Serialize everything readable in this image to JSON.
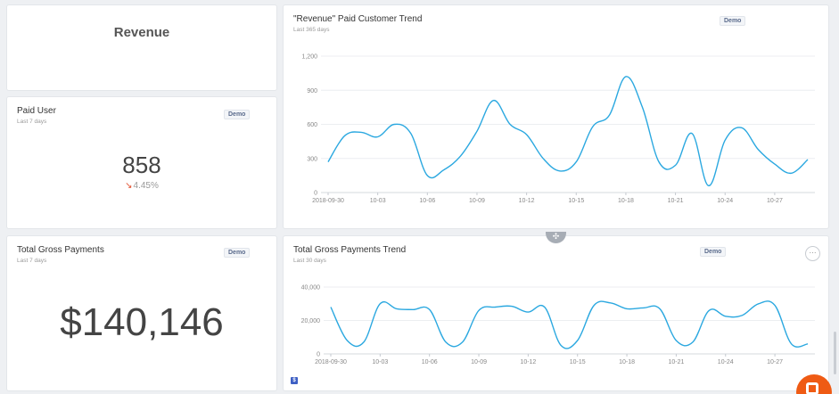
{
  "revenue_card": {
    "title": "Revenue"
  },
  "paid_user": {
    "title": "Paid User",
    "subtitle": "Last 7 days",
    "badge": "Demo",
    "value": "858",
    "delta_arrow": "↘",
    "delta": "4.45%"
  },
  "gross_payments": {
    "title": "Total Gross Payments",
    "subtitle": "Last 7 days",
    "badge": "Demo",
    "value": "$140,146"
  },
  "trend_chart": {
    "title": "\"Revenue\" Paid Customer Trend",
    "subtitle": "Last 365 days",
    "badge": "Demo"
  },
  "payments_trend": {
    "title": "Total Gross Payments Trend",
    "subtitle": "Last 30 days",
    "badge": "Demo",
    "more_label": "···"
  },
  "misc": {
    "grip_label": "✣",
    "footer_icon_label": "$"
  },
  "colors": {
    "line": "#2ba8e0",
    "grid": "#eceef1",
    "axis_text": "#888888"
  },
  "chart_data": [
    {
      "type": "line",
      "title": "\"Revenue\" Paid Customer Trend",
      "x": [
        "2018-09-30",
        "10-01",
        "10-02",
        "10-03",
        "10-04",
        "10-05",
        "10-06",
        "10-07",
        "10-08",
        "10-09",
        "10-10",
        "10-11",
        "10-12",
        "10-13",
        "10-14",
        "10-15",
        "10-16",
        "10-17",
        "10-18",
        "10-19",
        "10-20",
        "10-21",
        "10-22",
        "10-23",
        "10-24",
        "10-25",
        "10-26",
        "10-27",
        "10-28",
        "10-29"
      ],
      "xticks": [
        "2018-09-30",
        "10-03",
        "10-06",
        "10-09",
        "10-12",
        "10-15",
        "10-18",
        "10-21",
        "10-24",
        "10-27"
      ],
      "series": [
        {
          "values": [
            270,
            500,
            530,
            490,
            600,
            520,
            150,
            200,
            320,
            540,
            810,
            600,
            510,
            300,
            190,
            270,
            580,
            680,
            1020,
            750,
            270,
            240,
            520,
            60,
            460,
            570,
            380,
            250,
            170,
            290
          ]
        }
      ],
      "ylim": [
        0,
        1200
      ],
      "yticks": [
        0,
        300,
        600,
        900,
        1200
      ],
      "ytick_labels": [
        "0",
        "300",
        "600",
        "900",
        "1,200"
      ],
      "grid": true
    },
    {
      "type": "line",
      "title": "Total Gross Payments Trend",
      "x": [
        "2018-09-30",
        "10-01",
        "10-02",
        "10-03",
        "10-04",
        "10-05",
        "10-06",
        "10-07",
        "10-08",
        "10-09",
        "10-10",
        "10-11",
        "10-12",
        "10-13",
        "10-14",
        "10-15",
        "10-16",
        "10-17",
        "10-18",
        "10-19",
        "10-20",
        "10-21",
        "10-22",
        "10-23",
        "10-24",
        "10-25",
        "10-26",
        "10-27",
        "10-28",
        "10-29"
      ],
      "xticks": [
        "2018-09-30",
        "10-03",
        "10-06",
        "10-09",
        "10-12",
        "10-15",
        "10-18",
        "10-21",
        "10-24",
        "10-27"
      ],
      "series": [
        {
          "values": [
            28000,
            8000,
            7000,
            30000,
            27000,
            26500,
            26500,
            7000,
            7000,
            26000,
            28000,
            28500,
            25000,
            28000,
            5000,
            8000,
            29000,
            30500,
            27000,
            27500,
            27000,
            8000,
            7000,
            26000,
            22500,
            23000,
            30000,
            29000,
            6000,
            6000
          ]
        }
      ],
      "ylim": [
        0,
        40000
      ],
      "yticks": [
        0,
        20000,
        40000
      ],
      "ytick_labels": [
        "0",
        "20,000",
        "40,000"
      ],
      "grid": true
    }
  ]
}
